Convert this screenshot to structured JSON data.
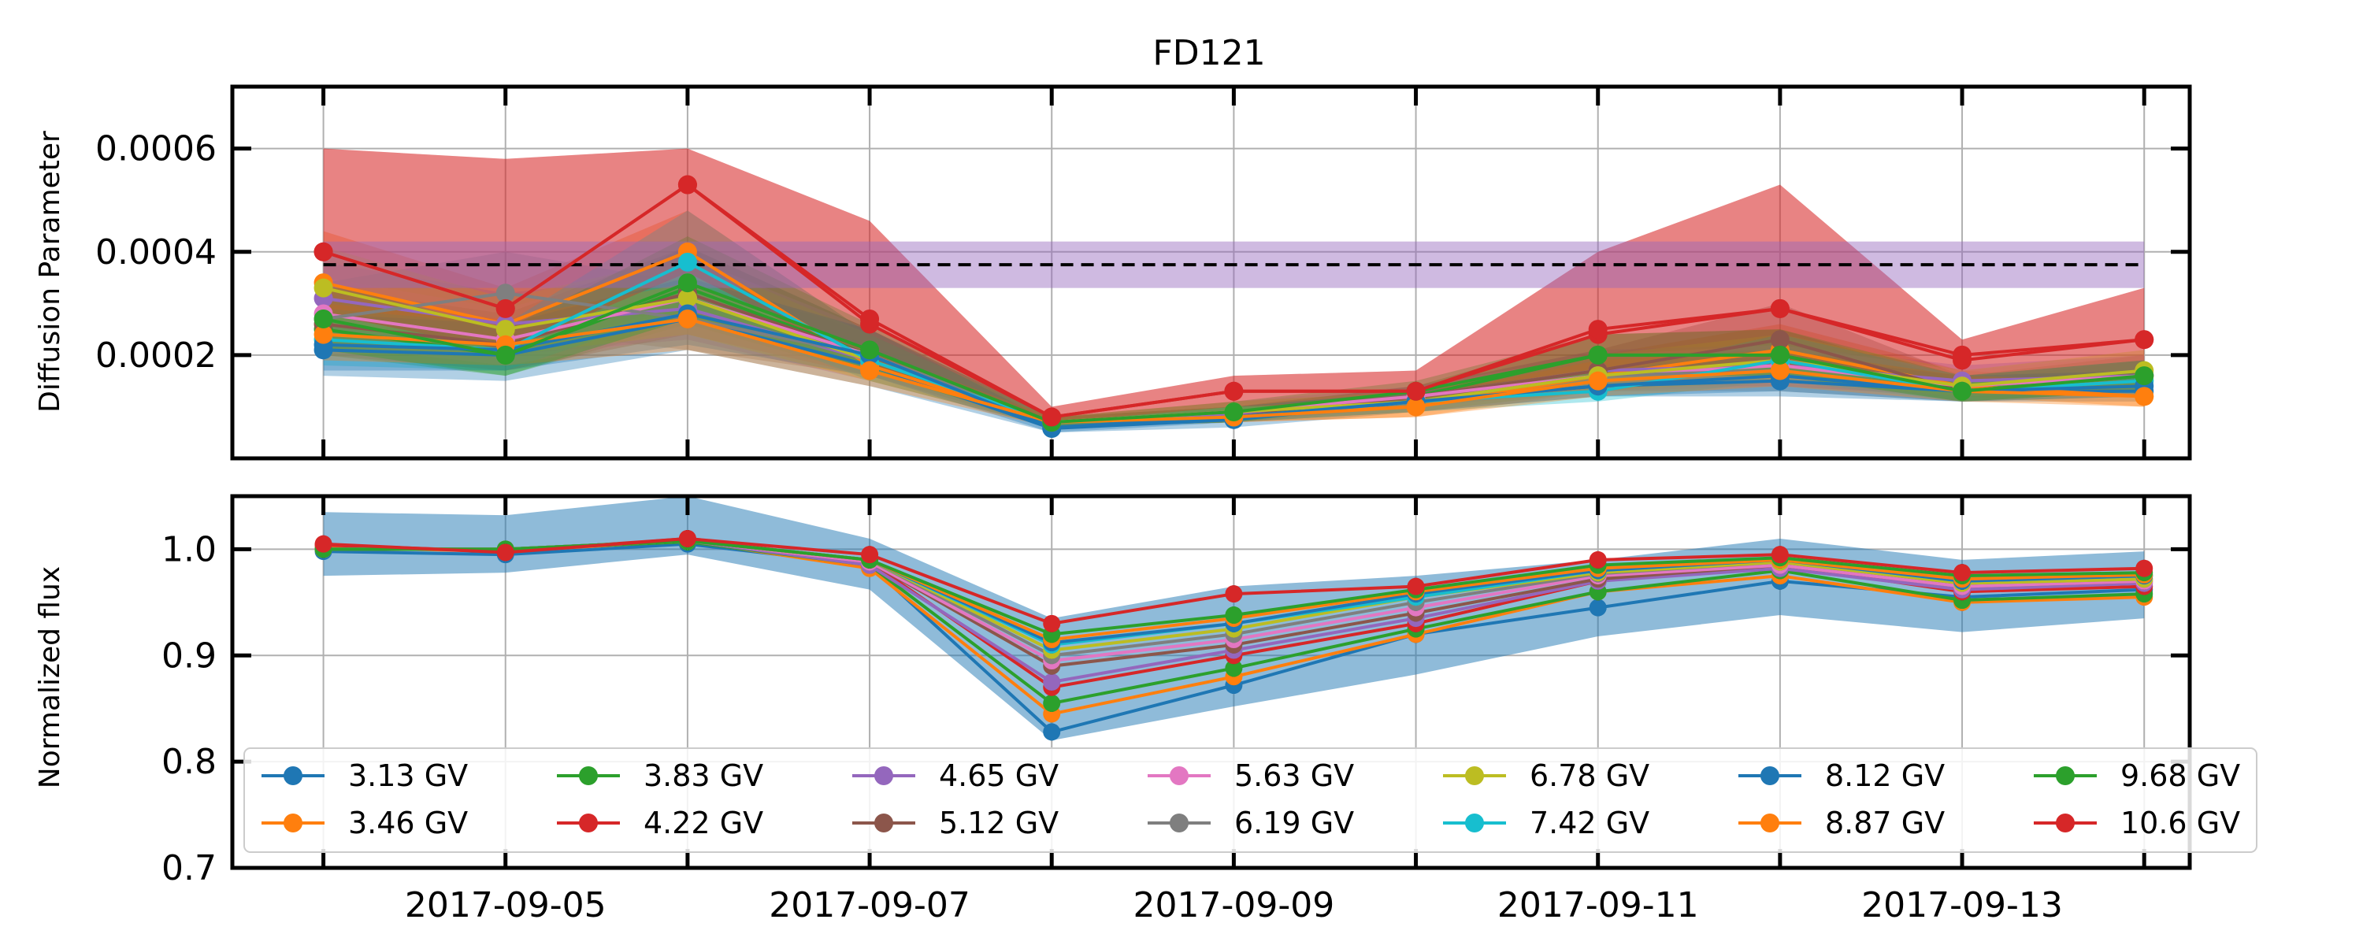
{
  "chart_data": [
    {
      "type": "line",
      "title": "FD121",
      "xlabel": "",
      "ylabel": "Diffusion Parameter",
      "x": [
        "2017-09-04",
        "2017-09-05",
        "2017-09-06",
        "2017-09-07",
        "2017-09-08",
        "2017-09-09",
        "2017-09-10",
        "2017-09-11",
        "2017-09-12",
        "2017-09-13",
        "2017-09-14"
      ],
      "xlim": [
        "2017-09-03T12:00",
        "2017-09-14T06:00"
      ],
      "ylim": [
        0.0,
        0.00072
      ],
      "y_ticks": [
        0.0002,
        0.0004,
        0.0006
      ],
      "y_tick_labels": [
        "0.0002",
        "0.0004",
        "0.0006"
      ],
      "x_ticks": [
        "2017-09-04",
        "2017-09-05",
        "2017-09-06",
        "2017-09-07",
        "2017-09-08",
        "2017-09-09",
        "2017-09-10",
        "2017-09-11",
        "2017-09-12",
        "2017-09-13",
        "2017-09-14"
      ],
      "grid": true,
      "reference_line": {
        "value": 0.000375,
        "band": [
          0.00033,
          0.00042
        ],
        "color": "#9467bd",
        "style": "dashed-black"
      },
      "series": [
        {
          "name": "3.13 GV",
          "color": "#1f77b4",
          "values": [
            0.00021,
            0.0002,
            0.00027,
            0.00018,
            5.8e-05,
            7.5e-05,
            0.00011,
            0.00014,
            0.00015,
            0.00013,
            0.00013
          ],
          "band_low": [
            0.00016,
            0.00015,
            0.00021,
            0.00014,
            5e-05,
            6e-05,
            9e-05,
            0.00012,
            0.00012,
            0.00011,
            0.00011
          ],
          "band_high": [
            0.00026,
            0.00024,
            0.00033,
            0.00022,
            7e-05,
            9e-05,
            0.00013,
            0.00016,
            0.00018,
            0.00015,
            0.00015
          ]
        },
        {
          "name": "3.46 GV",
          "color": "#ff7f0e",
          "values": [
            0.00034,
            0.00026,
            0.0004,
            0.00018,
            7e-05,
            8.5e-05,
            0.0001,
            0.00016,
            0.00021,
            0.00014,
            0.00012
          ],
          "band_low": [
            0.00026,
            0.0002,
            0.0003,
            0.00015,
            6e-05,
            7e-05,
            8e-05,
            0.00013,
            0.00016,
            0.00012,
            0.0001
          ],
          "band_high": [
            0.00044,
            0.00033,
            0.00048,
            0.00024,
            8e-05,
            0.0001,
            0.00012,
            0.0002,
            0.00026,
            0.00017,
            0.00015
          ]
        },
        {
          "name": "3.83 GV",
          "color": "#2ca02c",
          "values": [
            0.00025,
            0.0002,
            0.00033,
            0.0002,
            7e-05,
            8.5e-05,
            0.00012,
            0.0002,
            0.0002,
            0.00013,
            0.00016
          ],
          "band_low": [
            0.0002,
            0.00016,
            0.00026,
            0.00016,
            6e-05,
            7e-05,
            0.0001,
            0.00016,
            0.00016,
            0.00011,
            0.00013
          ],
          "band_high": [
            0.00031,
            0.00025,
            0.00041,
            0.00025,
            8e-05,
            0.0001,
            0.00014,
            0.00024,
            0.00025,
            0.00015,
            0.00019
          ]
        },
        {
          "name": "4.22 GV",
          "color": "#d62728",
          "values": [
            0.0004,
            0.00029,
            0.00053,
            0.00026,
            8e-05,
            0.00013,
            0.00013,
            0.00024,
            0.00029,
            0.00019,
            0.00023
          ],
          "band_low": [
            0.00028,
            0.00021,
            0.00036,
            0.00018,
            7e-05,
            0.0001,
            0.00011,
            0.00017,
            0.00018,
            0.00015,
            0.00016
          ],
          "band_high": [
            0.0006,
            0.00058,
            0.0006,
            0.00046,
            0.0001,
            0.00016,
            0.00017,
            0.0004,
            0.00053,
            0.00023,
            0.00033
          ]
        },
        {
          "name": "4.65 GV",
          "color": "#9467bd",
          "values": [
            0.00031,
            0.00026,
            0.00029,
            0.00019,
            7e-05,
            8.5e-05,
            0.00012,
            0.00017,
            0.00018,
            0.00015,
            0.00016
          ],
          "band_low": [
            0.00025,
            0.0002,
            0.00023,
            0.00015,
            6e-05,
            7e-05,
            0.0001,
            0.00014,
            0.00014,
            0.00012,
            0.00013
          ],
          "band_high": [
            0.00038,
            0.00032,
            0.00036,
            0.00024,
            8e-05,
            0.0001,
            0.00014,
            0.00021,
            0.00022,
            0.00018,
            0.0002
          ]
        },
        {
          "name": "5.12 GV",
          "color": "#8c564b",
          "values": [
            0.00026,
            0.00022,
            0.00032,
            0.0002,
            7e-05,
            8e-05,
            0.00012,
            0.00017,
            0.00023,
            0.00013,
            0.00016
          ],
          "band_low": [
            0.0002,
            0.00017,
            0.00024,
            0.00016,
            6e-05,
            7e-05,
            0.0001,
            0.00013,
            0.00017,
            0.00011,
            0.00013
          ],
          "band_high": [
            0.00033,
            0.00028,
            0.00041,
            0.00025,
            8e-05,
            0.0001,
            0.00014,
            0.00021,
            0.0003,
            0.00016,
            0.0002
          ]
        },
        {
          "name": "5.63 GV",
          "color": "#e377c2",
          "values": [
            0.00028,
            0.00023,
            0.00031,
            0.0002,
            7e-05,
            9e-05,
            0.00012,
            0.00016,
            0.00018,
            0.00014,
            0.00016
          ],
          "band_low": [
            0.00022,
            0.00018,
            0.00024,
            0.00016,
            6e-05,
            7e-05,
            0.0001,
            0.00013,
            0.00014,
            0.00012,
            0.00013
          ],
          "band_high": [
            0.00035,
            0.00029,
            0.00039,
            0.00025,
            8e-05,
            0.00011,
            0.00014,
            0.0002,
            0.00022,
            0.00017,
            0.0002
          ]
        },
        {
          "name": "6.19 GV",
          "color": "#7f7f7f",
          "values": [
            0.00027,
            0.00032,
            0.00027,
            0.0002,
            7e-05,
            8e-05,
            0.00011,
            0.00016,
            0.00017,
            0.00013,
            0.00015
          ],
          "band_low": [
            0.00021,
            0.00025,
            0.00021,
            0.00016,
            6e-05,
            7e-05,
            9e-05,
            0.00013,
            0.00013,
            0.00011,
            0.00012
          ],
          "band_high": [
            0.00034,
            0.0004,
            0.00034,
            0.00025,
            8e-05,
            0.0001,
            0.00013,
            0.0002,
            0.00021,
            0.00016,
            0.00019
          ]
        },
        {
          "name": "6.78 GV",
          "color": "#bcbd22",
          "values": [
            0.00033,
            0.00025,
            0.00031,
            0.00019,
            7e-05,
            9e-05,
            0.00011,
            0.00016,
            0.00019,
            0.00014,
            0.00017
          ],
          "band_low": [
            0.00026,
            0.0002,
            0.00024,
            0.00015,
            6e-05,
            7e-05,
            9e-05,
            0.00013,
            0.00015,
            0.00012,
            0.00014
          ],
          "band_high": [
            0.00041,
            0.00031,
            0.00039,
            0.00024,
            8e-05,
            0.00011,
            0.00013,
            0.0002,
            0.00024,
            0.00017,
            0.00021
          ]
        },
        {
          "name": "7.42 GV",
          "color": "#17becf",
          "values": [
            0.00023,
            0.00021,
            0.00038,
            0.00019,
            7e-05,
            8e-05,
            0.00011,
            0.00013,
            0.00019,
            0.00013,
            0.00015
          ],
          "band_low": [
            0.00018,
            0.00017,
            0.00029,
            0.00015,
            6e-05,
            7e-05,
            9e-05,
            0.00011,
            0.00015,
            0.00011,
            0.00012
          ],
          "band_high": [
            0.00029,
            0.00026,
            0.00048,
            0.00024,
            8e-05,
            0.0001,
            0.00013,
            0.00016,
            0.00024,
            0.00016,
            0.00019
          ]
        },
        {
          "name": "8.12 GV",
          "color": "#1f77b4",
          "values": [
            0.00022,
            0.00021,
            0.00028,
            0.0002,
            6e-05,
            8e-05,
            0.00011,
            0.00014,
            0.00016,
            0.00013,
            0.00014
          ],
          "band_low": [
            0.00017,
            0.00017,
            0.00022,
            0.00016,
            5e-05,
            7e-05,
            9e-05,
            0.00012,
            0.00013,
            0.00011,
            0.00012
          ],
          "band_high": [
            0.00028,
            0.00026,
            0.00035,
            0.00025,
            7e-05,
            0.0001,
            0.00013,
            0.00017,
            0.0002,
            0.00016,
            0.00017
          ]
        },
        {
          "name": "8.87 GV",
          "color": "#ff7f0e",
          "values": [
            0.00024,
            0.00022,
            0.00027,
            0.00017,
            7e-05,
            8e-05,
            0.0001,
            0.00015,
            0.00017,
            0.00013,
            0.00012
          ],
          "band_low": [
            0.00019,
            0.00018,
            0.00021,
            0.00014,
            6e-05,
            7e-05,
            8e-05,
            0.00012,
            0.00014,
            0.00011,
            0.0001
          ],
          "band_high": [
            0.0003,
            0.00027,
            0.00034,
            0.00021,
            8e-05,
            0.0001,
            0.00012,
            0.00019,
            0.00021,
            0.00016,
            0.00015
          ]
        },
        {
          "name": "9.68 GV",
          "color": "#2ca02c",
          "values": [
            0.00027,
            0.0002,
            0.00034,
            0.00021,
            7e-05,
            9e-05,
            0.00013,
            0.0002,
            0.0002,
            0.00013,
            0.00016
          ],
          "band_low": [
            0.00021,
            0.00016,
            0.00027,
            0.00017,
            6e-05,
            7e-05,
            0.00011,
            0.00016,
            0.00016,
            0.00011,
            0.00013
          ],
          "band_high": [
            0.00034,
            0.00025,
            0.00043,
            0.00026,
            8e-05,
            0.00011,
            0.00015,
            0.00024,
            0.00025,
            0.00016,
            0.00019
          ]
        },
        {
          "name": "10.6 GV",
          "color": "#d62728",
          "values": [
            0.0004,
            0.00029,
            0.00053,
            0.00027,
            8e-05,
            0.00013,
            0.00013,
            0.00025,
            0.00029,
            0.0002,
            0.00023
          ],
          "band_low": [
            0.00028,
            0.00021,
            0.00036,
            0.00018,
            7e-05,
            0.0001,
            0.00011,
            0.00017,
            0.00018,
            0.00015,
            0.00016
          ],
          "band_high": [
            0.0006,
            0.00058,
            0.0006,
            0.00046,
            0.0001,
            0.00016,
            0.00017,
            0.0004,
            0.00053,
            0.00023,
            0.00033
          ]
        }
      ]
    },
    {
      "type": "line",
      "title": "",
      "xlabel": "",
      "ylabel": "Normalized flux",
      "x": [
        "2017-09-04",
        "2017-09-05",
        "2017-09-06",
        "2017-09-07",
        "2017-09-08",
        "2017-09-09",
        "2017-09-10",
        "2017-09-11",
        "2017-09-12",
        "2017-09-13",
        "2017-09-14"
      ],
      "xlim": [
        "2017-09-03T12:00",
        "2017-09-14T06:00"
      ],
      "ylim": [
        0.7,
        1.05
      ],
      "y_ticks": [
        0.7,
        0.8,
        0.9,
        1.0
      ],
      "y_tick_labels": [
        "0.7",
        "0.8",
        "0.9",
        "1.0"
      ],
      "x_ticks": [
        "2017-09-04",
        "2017-09-05",
        "2017-09-06",
        "2017-09-07",
        "2017-09-08",
        "2017-09-09",
        "2017-09-10",
        "2017-09-11",
        "2017-09-12",
        "2017-09-13",
        "2017-09-14"
      ],
      "x_tick_labels": [
        "2017-09-05",
        "2017-09-07",
        "2017-09-09",
        "2017-09-11",
        "2017-09-13"
      ],
      "x_tick_label_dates": [
        "2017-09-05",
        "2017-09-07",
        "2017-09-09",
        "2017-09-11",
        "2017-09-13"
      ],
      "grid": true,
      "legend": {
        "placement": "lower-center",
        "columns": 7
      },
      "band": {
        "color": "#1f77b4",
        "low": [
          0.975,
          0.978,
          0.995,
          0.962,
          0.82,
          0.852,
          0.882,
          0.918,
          0.938,
          0.922,
          0.935
        ],
        "high": [
          1.035,
          1.032,
          1.05,
          1.01,
          0.935,
          0.965,
          0.975,
          0.99,
          1.01,
          0.99,
          0.998
        ]
      },
      "series": [
        {
          "name": "3.13 GV",
          "color": "#1f77b4",
          "values": [
            0.998,
            0.995,
            1.005,
            0.985,
            0.828,
            0.872,
            0.92,
            0.945,
            0.97,
            0.955,
            0.962
          ]
        },
        {
          "name": "3.46 GV",
          "color": "#ff7f0e",
          "values": [
            1.002,
            0.998,
            1.008,
            0.982,
            0.845,
            0.88,
            0.92,
            0.96,
            0.975,
            0.95,
            0.955
          ]
        },
        {
          "name": "3.83 GV",
          "color": "#2ca02c",
          "values": [
            1.0,
            1.0,
            1.007,
            0.985,
            0.855,
            0.888,
            0.925,
            0.96,
            0.98,
            0.952,
            0.958
          ]
        },
        {
          "name": "4.22 GV",
          "color": "#d62728",
          "values": [
            1.004,
            0.998,
            1.01,
            0.988,
            0.87,
            0.9,
            0.93,
            0.97,
            0.985,
            0.96,
            0.965
          ]
        },
        {
          "name": "4.65 GV",
          "color": "#9467bd",
          "values": [
            1.0,
            1.0,
            1.008,
            0.985,
            0.875,
            0.905,
            0.935,
            0.97,
            0.982,
            0.962,
            0.968
          ]
        },
        {
          "name": "5.12 GV",
          "color": "#8c564b",
          "values": [
            1.0,
            1.0,
            1.008,
            0.988,
            0.89,
            0.91,
            0.94,
            0.972,
            0.985,
            0.965,
            0.97
          ]
        },
        {
          "name": "5.63 GV",
          "color": "#e377c2",
          "values": [
            1.0,
            1.0,
            1.008,
            0.988,
            0.895,
            0.915,
            0.945,
            0.975,
            0.985,
            0.965,
            0.97
          ]
        },
        {
          "name": "6.19 GV",
          "color": "#7f7f7f",
          "values": [
            1.0,
            1.0,
            1.008,
            0.99,
            0.9,
            0.92,
            0.95,
            0.977,
            0.988,
            0.968,
            0.972
          ]
        },
        {
          "name": "6.78 GV",
          "color": "#bcbd22",
          "values": [
            1.0,
            1.0,
            1.008,
            0.99,
            0.905,
            0.925,
            0.955,
            0.978,
            0.988,
            0.968,
            0.972
          ]
        },
        {
          "name": "7.42 GV",
          "color": "#17becf",
          "values": [
            1.0,
            1.0,
            1.008,
            0.99,
            0.91,
            0.93,
            0.955,
            0.98,
            0.99,
            0.97,
            0.975
          ]
        },
        {
          "name": "8.12 GV",
          "color": "#1f77b4",
          "values": [
            1.0,
            1.0,
            1.008,
            0.99,
            0.912,
            0.93,
            0.958,
            0.98,
            0.99,
            0.97,
            0.975
          ]
        },
        {
          "name": "8.87 GV",
          "color": "#ff7f0e",
          "values": [
            1.0,
            1.0,
            1.008,
            0.99,
            0.915,
            0.935,
            0.96,
            0.982,
            0.99,
            0.972,
            0.976
          ]
        },
        {
          "name": "9.68 GV",
          "color": "#2ca02c",
          "values": [
            1.0,
            1.0,
            1.008,
            0.99,
            0.92,
            0.938,
            0.962,
            0.985,
            0.992,
            0.975,
            0.978
          ]
        },
        {
          "name": "10.6 GV",
          "color": "#d62728",
          "values": [
            1.005,
            0.997,
            1.01,
            0.995,
            0.93,
            0.958,
            0.965,
            0.99,
            0.995,
            0.978,
            0.982
          ]
        }
      ]
    }
  ]
}
